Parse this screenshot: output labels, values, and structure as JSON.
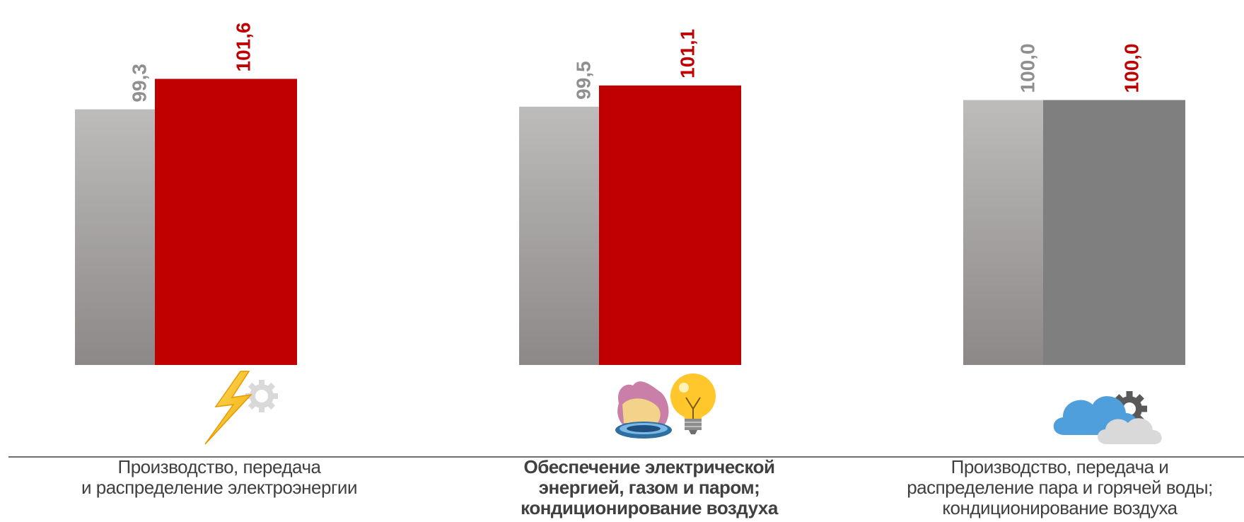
{
  "chart_data": {
    "type": "bar",
    "categories": [
      "Производство, передача и распределение электроэнергии",
      "Обеспечение электрической энергией, газом и паром; кондиционирование воздуха",
      "Производство, передача и распределение пара и горячей воды; кондиционирование воздуха"
    ],
    "series": [
      {
        "values": [
          99.3,
          99.5,
          100.0
        ]
      },
      {
        "values": [
          101.6,
          101.1,
          100.0
        ]
      }
    ],
    "value_labels": [
      [
        "99,3",
        "101,6"
      ],
      [
        "99,5",
        "101,1"
      ],
      [
        "100,0",
        "100,0"
      ]
    ],
    "ylim": [
      80,
      102
    ],
    "colors": {
      "series1_top": "#bdbcbb",
      "series1_bottom": "#8c8887",
      "series2": "#c00000",
      "series2_neutral": "#7f7f7f",
      "label_series1": "#8f8f8f",
      "label_series2": "#c00000"
    },
    "icons": [
      "lightning-gear-icon",
      "gas-burner-lightbulb-icon",
      "cloud-gear-icon"
    ]
  },
  "labels": {
    "cat1": [
      "Производство, передача",
      "и распределение электроэнергии"
    ],
    "cat2": [
      "Обеспечение электрической",
      "энергией, газом и паром;",
      "кондиционирование воздуха"
    ],
    "cat3": [
      "Производство, передача и",
      "распределение пара и горячей воды;",
      "кондиционирование воздуха"
    ]
  }
}
